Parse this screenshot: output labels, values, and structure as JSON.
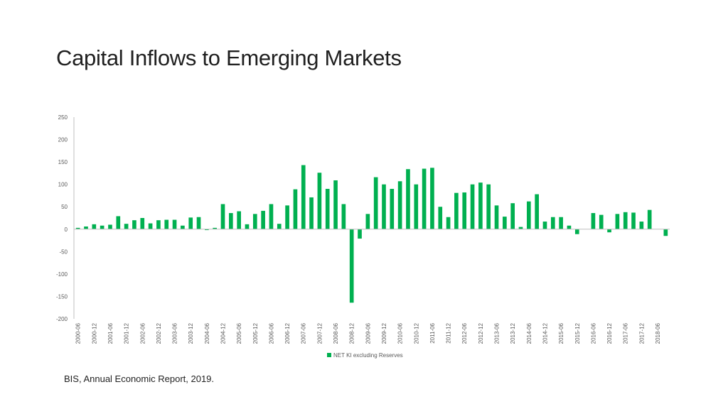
{
  "slide": {
    "title": "Capital Inflows to Emerging Markets",
    "source": "BIS, Annual Economic Report, 2019."
  },
  "colors": {
    "bar": "#00b050",
    "axis": "#bfbfbf",
    "text": "#595959"
  },
  "chart_data": {
    "type": "bar",
    "title": "",
    "xlabel": "",
    "ylabel": "",
    "ylim": [
      -200,
      250
    ],
    "yticks": [
      250,
      200,
      150,
      100,
      50,
      0,
      -50,
      -100,
      -150,
      -200
    ],
    "grid": false,
    "legend_position": "bottom",
    "categories": [
      "2000-06",
      "2000-09",
      "2000-12",
      "2001-03",
      "2001-06",
      "2001-09",
      "2001-12",
      "2002-03",
      "2002-06",
      "2002-09",
      "2002-12",
      "2003-03",
      "2003-06",
      "2003-09",
      "2003-12",
      "2004-03",
      "2004-06",
      "2004-09",
      "2004-12",
      "2005-03",
      "2005-06",
      "2005-09",
      "2005-12",
      "2006-03",
      "2006-06",
      "2006-09",
      "2006-12",
      "2007-03",
      "2007-06",
      "2007-09",
      "2007-12",
      "2008-03",
      "2008-06",
      "2008-09",
      "2008-12",
      "2009-03",
      "2009-06",
      "2009-09",
      "2009-12",
      "2010-03",
      "2010-06",
      "2010-09",
      "2010-12",
      "2011-03",
      "2011-06",
      "2011-09",
      "2011-12",
      "2012-03",
      "2012-06",
      "2012-09",
      "2012-12",
      "2013-03",
      "2013-06",
      "2013-09",
      "2013-12",
      "2014-03",
      "2014-06",
      "2014-09",
      "2014-12",
      "2015-03",
      "2015-06",
      "2015-09",
      "2015-12",
      "2016-03",
      "2016-06",
      "2016-09",
      "2016-12",
      "2017-03",
      "2017-06",
      "2017-09",
      "2017-12",
      "2018-03",
      "2018-06",
      "2018-09"
    ],
    "tick_labels": [
      "2000-06",
      "2000-12",
      "2001-06",
      "2001-12",
      "2002-06",
      "2002-12",
      "2003-06",
      "2003-12",
      "2004-06",
      "2004-12",
      "2005-06",
      "2005-12",
      "2006-06",
      "2006-12",
      "2007-06",
      "2007-12",
      "2008-06",
      "2008-12",
      "2009-06",
      "2009-12",
      "2010-06",
      "2010-12",
      "2011-06",
      "2011-12",
      "2012-06",
      "2012-12",
      "2013-06",
      "2013-12",
      "2014-06",
      "2014-12",
      "2015-06",
      "2015-12",
      "2016-06",
      "2016-12",
      "2017-06",
      "2017-12",
      "2018-06"
    ],
    "series": [
      {
        "name": "NET KI excluding Reserves",
        "values": [
          3,
          6,
          11,
          8,
          10,
          29,
          12,
          20,
          25,
          13,
          20,
          21,
          21,
          8,
          26,
          27,
          -2,
          3,
          56,
          36,
          40,
          11,
          34,
          41,
          56,
          12,
          53,
          89,
          143,
          71,
          126,
          90,
          109,
          56,
          -164,
          -21,
          34,
          116,
          100,
          90,
          107,
          134,
          100,
          135,
          137,
          50,
          27,
          81,
          82,
          100,
          104,
          100,
          53,
          28,
          58,
          5,
          62,
          78,
          17,
          27,
          27,
          8,
          -11,
          0,
          36,
          32,
          -7,
          34,
          38,
          37,
          17,
          43,
          0,
          -15
        ]
      }
    ]
  }
}
